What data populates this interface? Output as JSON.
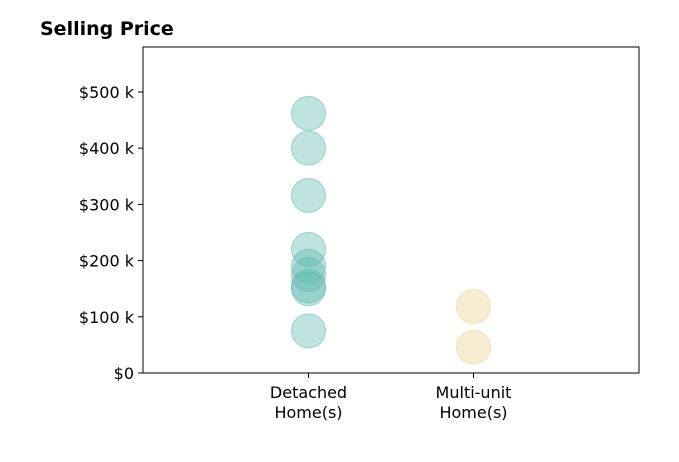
{
  "chart_data": {
    "type": "scatter",
    "title": "Selling Price",
    "xlabel": "",
    "ylabel": "",
    "categories": [
      [
        "Detached",
        "Home(s)"
      ],
      [
        "Multi-unit",
        "Home(s)"
      ]
    ],
    "ylim": [
      0,
      580000
    ],
    "yticks": [
      0,
      100000,
      200000,
      300000,
      400000,
      500000
    ],
    "ytick_labels": [
      "$0",
      "$100 k",
      "$200 k",
      "$300 k",
      "$400 k",
      "$500 k"
    ],
    "grid": false,
    "legend": "none",
    "series": [
      {
        "category_index": 0,
        "color": "#5fb8b0",
        "values": [
          462000,
          400000,
          316000,
          220000,
          190000,
          175000,
          155000,
          150000,
          75000
        ]
      },
      {
        "category_index": 1,
        "color": "#eed08f",
        "values": [
          118000,
          46000
        ]
      }
    ]
  }
}
